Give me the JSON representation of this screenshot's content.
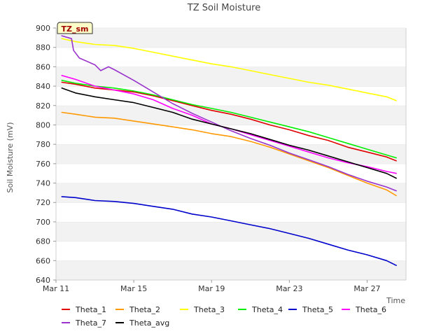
{
  "chart_data": {
    "type": "line",
    "title": "TZ Soil Moisture",
    "tag": "TZ_sm",
    "xlabel": "Time",
    "ylabel": "Soil Moisture (mV)",
    "ylim": [
      640,
      900
    ],
    "yticks": [
      640,
      660,
      680,
      700,
      720,
      740,
      760,
      780,
      800,
      820,
      840,
      860,
      880,
      900
    ],
    "xlim": [
      0,
      18
    ],
    "xtick_values": [
      0,
      4,
      8,
      12,
      16
    ],
    "xtick_labels": [
      "Mar 11",
      "Mar 15",
      "Mar 19",
      "Mar 23",
      "Mar 27"
    ],
    "grid": "horizontal bands",
    "legend_position": "bottom",
    "series": [
      {
        "name": "Theta_1",
        "color": "#e00000",
        "x": [
          0.3,
          1,
          2,
          3,
          4,
          5,
          6,
          7,
          8,
          9,
          10,
          11,
          12,
          13,
          14,
          15,
          16,
          17,
          17.5
        ],
        "y": [
          844,
          842,
          838,
          836,
          834,
          830,
          825,
          820,
          815,
          811,
          806,
          800,
          795,
          789,
          784,
          777,
          772,
          767,
          763
        ]
      },
      {
        "name": "Theta_2",
        "color": "#ff9900",
        "x": [
          0.3,
          1,
          2,
          3,
          4,
          5,
          6,
          7,
          8,
          9,
          10,
          11,
          12,
          13,
          14,
          15,
          16,
          17,
          17.5
        ],
        "y": [
          813,
          811,
          808,
          807,
          804,
          801,
          798,
          795,
          791,
          788,
          783,
          777,
          770,
          763,
          756,
          748,
          740,
          733,
          727
        ]
      },
      {
        "name": "Theta_3",
        "color": "#ffff00",
        "x": [
          0.3,
          1,
          2,
          3,
          4,
          5,
          6,
          7,
          8,
          9,
          10,
          11,
          12,
          13,
          14,
          15,
          16,
          17,
          17.5
        ],
        "y": [
          889,
          886,
          883,
          882,
          879,
          875,
          871,
          867,
          863,
          860,
          856,
          852,
          848,
          844,
          841,
          837,
          833,
          829,
          825
        ]
      },
      {
        "name": "Theta_4",
        "color": "#00ee00",
        "x": [
          0.3,
          1,
          2,
          3,
          4,
          5,
          6,
          7,
          8,
          9,
          10,
          11,
          12,
          13,
          14,
          15,
          16,
          17,
          17.5
        ],
        "y": [
          846,
          843,
          840,
          838,
          835,
          831,
          826,
          821,
          817,
          813,
          808,
          803,
          798,
          793,
          787,
          781,
          775,
          769,
          766
        ]
      },
      {
        "name": "Theta_5",
        "color": "#0000cc",
        "x": [
          0.3,
          1,
          2,
          3,
          4,
          5,
          6,
          7,
          8,
          9,
          10,
          11,
          12,
          13,
          14,
          15,
          16,
          17,
          17.5
        ],
        "y": [
          726,
          725,
          722,
          721,
          719,
          716,
          713,
          708,
          705,
          701,
          697,
          693,
          688,
          683,
          677,
          671,
          666,
          660,
          655
        ]
      },
      {
        "name": "Theta_6",
        "color": "#ff00ff",
        "x": [
          0.3,
          1,
          2,
          3,
          4,
          5,
          6,
          7,
          8,
          9,
          10,
          11,
          12,
          13,
          14,
          15,
          16,
          17,
          17.5
        ],
        "y": [
          851,
          847,
          840,
          836,
          832,
          826,
          817,
          810,
          801,
          796,
          790,
          784,
          778,
          772,
          766,
          761,
          757,
          752,
          750
        ]
      },
      {
        "name": "Theta_7",
        "color": "#9933cc",
        "x": [
          0.3,
          0.8,
          0.9,
          1.2,
          2,
          2.3,
          2.7,
          3,
          4,
          5,
          6,
          7,
          8,
          9,
          10,
          11,
          12,
          13,
          14,
          15,
          16,
          17,
          17.5
        ],
        "y": [
          892,
          889,
          877,
          869,
          862,
          856,
          860,
          857,
          846,
          834,
          822,
          812,
          803,
          794,
          786,
          779,
          771,
          764,
          757,
          749,
          742,
          736,
          732
        ]
      },
      {
        "name": "Theta_avg",
        "color": "#000000",
        "x": [
          0.3,
          1,
          2,
          3,
          4,
          5,
          6,
          7,
          8,
          9,
          10,
          11,
          12,
          13,
          14,
          15,
          16,
          17,
          17.5
        ],
        "y": [
          838,
          833,
          829,
          826,
          823,
          818,
          813,
          806,
          801,
          796,
          791,
          785,
          779,
          774,
          768,
          762,
          756,
          750,
          745
        ]
      }
    ]
  }
}
